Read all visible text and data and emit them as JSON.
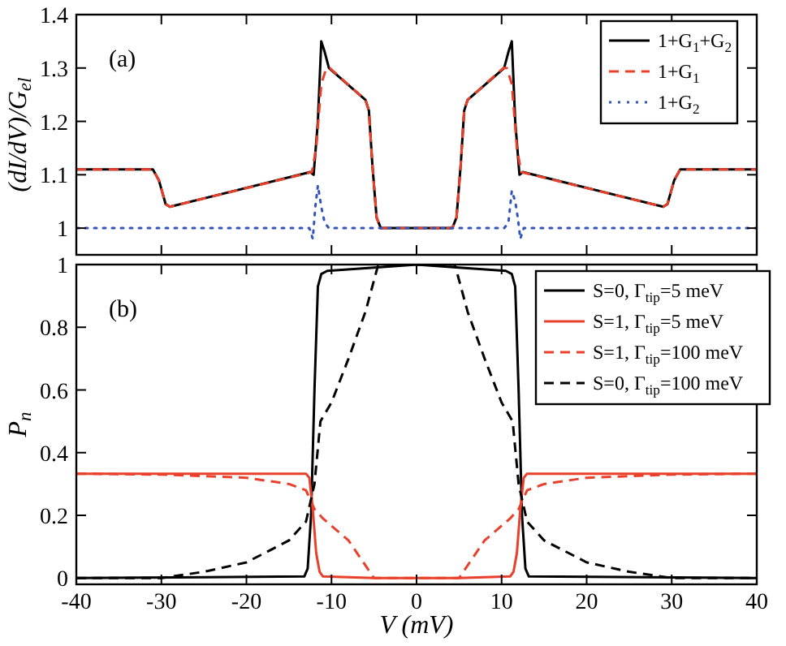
{
  "chart_data": [
    {
      "type": "line",
      "ylabel": "(dI/dV)/G$_{el}$",
      "xlim": [
        -40,
        40
      ],
      "xticks": [
        {
          "value": -40,
          "label": null
        },
        {
          "value": -30,
          "label": null
        },
        {
          "value": -20,
          "label": null
        },
        {
          "value": -10,
          "label": null
        },
        {
          "value": 0,
          "label": null
        },
        {
          "value": 10,
          "label": null
        },
        {
          "value": 20,
          "label": null
        },
        {
          "value": 30,
          "label": null
        },
        {
          "value": 40,
          "label": null
        }
      ],
      "ylim": [
        0.95,
        1.4
      ],
      "yticks": [
        1,
        1.1,
        1.2,
        1.3,
        1.4
      ],
      "tick_labels": "y",
      "legend": "top right",
      "grid": false,
      "annotations": [
        "(a)"
      ],
      "series": [
        {
          "name": "1+G$_{1}$+G$_{2}$",
          "color": "#000000",
          "line_style": "solid",
          "x": [
            -40,
            -31,
            -30.3,
            -29.5,
            -29,
            -12.5,
            -12.1,
            -11.6,
            -11.2,
            -10.8,
            -10.3,
            -6,
            -5.6,
            -5.2,
            -4.7,
            -4.2,
            4.2,
            4.7,
            5.2,
            5.6,
            6,
            10.3,
            10.8,
            11.2,
            11.6,
            12.1,
            12.5,
            29,
            29.5,
            30.3,
            31,
            40
          ],
          "values": [
            1.11,
            1.11,
            1.09,
            1.045,
            1.04,
            1.105,
            1.1,
            1.2,
            1.35,
            1.33,
            1.3,
            1.24,
            1.22,
            1.12,
            1.02,
            1.0,
            1.0,
            1.02,
            1.12,
            1.22,
            1.24,
            1.3,
            1.33,
            1.35,
            1.2,
            1.1,
            1.105,
            1.04,
            1.045,
            1.09,
            1.11,
            1.11
          ]
        },
        {
          "name": "1+G$_{1}$",
          "color": "#e8402a",
          "line_style": "dashed",
          "x": [
            -40,
            -31,
            -30.3,
            -29.5,
            -29,
            -12.3,
            -11.8,
            -11.2,
            -10.6,
            -10.2,
            -6,
            -5.6,
            -5.2,
            -4.7,
            -4.2,
            4.2,
            4.7,
            5.2,
            5.6,
            6,
            10.2,
            10.6,
            11.2,
            11.8,
            12.3,
            29,
            29.5,
            30.3,
            31,
            40
          ],
          "values": [
            1.11,
            1.11,
            1.09,
            1.045,
            1.04,
            1.105,
            1.15,
            1.27,
            1.3,
            1.3,
            1.24,
            1.22,
            1.12,
            1.02,
            1.0,
            1.0,
            1.02,
            1.12,
            1.22,
            1.24,
            1.3,
            1.3,
            1.27,
            1.15,
            1.105,
            1.04,
            1.045,
            1.09,
            1.11,
            1.11
          ]
        },
        {
          "name": "1+G$_{2}$",
          "color": "#3355bb",
          "line_style": "dotted",
          "x": [
            -40,
            -12.6,
            -12.2,
            -11.9,
            -11.6,
            -11.2,
            -10.8,
            -10.3,
            10.3,
            10.8,
            11.2,
            11.6,
            11.9,
            12.2,
            12.6,
            40
          ],
          "values": [
            1.0,
            1.0,
            0.98,
            1.04,
            1.08,
            1.04,
            1.01,
            1.0,
            1.0,
            1.01,
            1.07,
            1.05,
            1.02,
            0.98,
            1.0,
            1.0
          ]
        }
      ]
    },
    {
      "type": "line",
      "xlabel": "V (mV)",
      "ylabel": "P$_{n}$",
      "xlim": [
        -40,
        40
      ],
      "xticks": [
        -40,
        -30,
        -20,
        -10,
        0,
        10,
        20,
        30,
        40
      ],
      "ylim": [
        -0.02,
        1
      ],
      "yticks": [
        0,
        0.2,
        0.4,
        0.6,
        0.8,
        1
      ],
      "legend": "top right",
      "grid": false,
      "annotations": [
        "(b)"
      ],
      "series": [
        {
          "name": "S=0, Γ$_{tip}$=5 meV",
          "color": "#000000",
          "line_style": "solid",
          "x": [
            -40,
            -13.2,
            -12.8,
            -12.4,
            -12,
            -11.6,
            -11.2,
            -10.5,
            -5,
            0,
            5,
            10.5,
            11.2,
            11.6,
            12,
            12.4,
            12.8,
            13.2,
            40
          ],
          "values": [
            0,
            0.005,
            0.03,
            0.2,
            0.6,
            0.93,
            0.97,
            0.98,
            0.99,
            1.0,
            0.99,
            0.98,
            0.97,
            0.93,
            0.6,
            0.2,
            0.03,
            0.005,
            0
          ]
        },
        {
          "name": "S=1, Γ$_{tip}$=5 meV",
          "color": "#e8402a",
          "line_style": "solid",
          "x": [
            -40,
            -13,
            -12.6,
            -12.2,
            -11.8,
            -11.4,
            -11,
            -5,
            0,
            5,
            11,
            11.4,
            11.8,
            12.2,
            12.6,
            13,
            40
          ],
          "values": [
            0.333,
            0.333,
            0.32,
            0.22,
            0.08,
            0.02,
            0.005,
            0,
            0,
            0,
            0.005,
            0.02,
            0.08,
            0.22,
            0.32,
            0.333,
            0.333
          ]
        },
        {
          "name": "S=1, Γ$_{tip}$=100 meV",
          "color": "#e8402a",
          "line_style": "dashed",
          "x": [
            -40,
            -30,
            -20,
            -15,
            -13,
            -12,
            -11,
            -8,
            -5,
            5,
            8,
            11,
            12,
            13,
            15,
            20,
            30,
            40
          ],
          "values": [
            0.333,
            0.33,
            0.32,
            0.3,
            0.28,
            0.22,
            0.19,
            0.12,
            0,
            0,
            0.12,
            0.19,
            0.22,
            0.28,
            0.3,
            0.32,
            0.33,
            0.333
          ]
        },
        {
          "name": "S=0, Γ$_{tip}$=100 meV",
          "color": "#000000",
          "line_style": "dashed",
          "x": [
            -40,
            -30,
            -25,
            -20,
            -15,
            -13,
            -12,
            -11.3,
            -10,
            -8,
            -6,
            -4.5,
            4.5,
            6,
            8,
            10,
            11.3,
            12,
            13,
            15,
            20,
            25,
            30,
            40
          ],
          "values": [
            0,
            0,
            0.02,
            0.05,
            0.12,
            0.18,
            0.3,
            0.5,
            0.56,
            0.7,
            0.85,
            1.0,
            1.0,
            0.85,
            0.7,
            0.56,
            0.5,
            0.3,
            0.18,
            0.12,
            0.05,
            0.02,
            0,
            0
          ]
        }
      ]
    }
  ]
}
